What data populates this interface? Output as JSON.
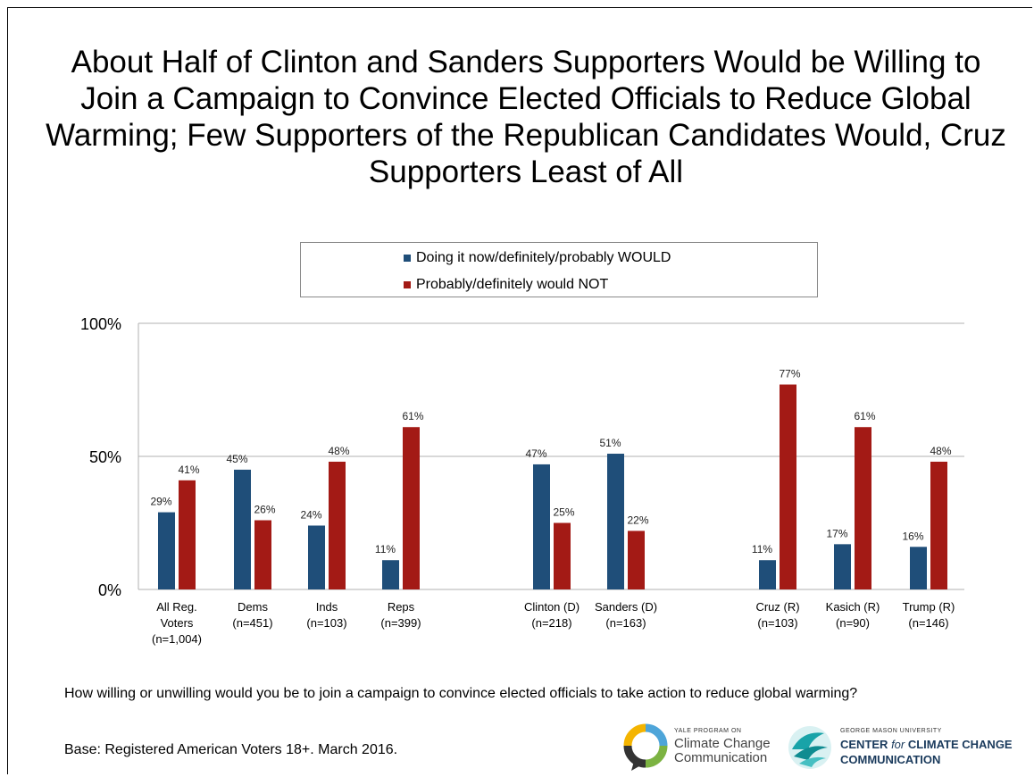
{
  "title": "About Half of Clinton and Sanders Supporters Would be Willing to Join a Campaign to Convince Elected Officials to Reduce Global Warming; Few Supporters of the Republican Candidates Would, Cruz Supporters Least of All",
  "question": "How willing or unwilling would you be to join a campaign to convince elected officials to take action to reduce global warming?",
  "base": "Base: Registered American Voters 18+. March 2016.",
  "logos": {
    "yale_small": "YALE PROGRAM ON",
    "yale_line1": "Climate Change",
    "yale_line2": "Communication",
    "gmu_small": "GEORGE MASON UNIVERSITY",
    "gmu_line1_a": "CENTER ",
    "gmu_line1_b": "for",
    "gmu_line1_c": " CLIMATE CHANGE",
    "gmu_line2": "COMMUNICATION"
  },
  "colors": {
    "would": "#1f4e79",
    "would_not": "#a31a15",
    "gridline": "#b0b0b0"
  },
  "chart_data": {
    "type": "bar",
    "title": "About Half of Clinton and Sanders Supporters Would be Willing to Join a Campaign to Convince Elected Officials to Reduce Global Warming; Few Supporters of the Republican Candidates Would, Cruz Supporters Least of All",
    "categories": [
      [
        "All Reg.",
        "Voters",
        "(n=1,004)"
      ],
      [
        "Dems",
        "(n=451)"
      ],
      [
        "Inds",
        "(n=103)"
      ],
      [
        "Reps",
        "(n=399)"
      ],
      [
        "Clinton (D)",
        "(n=218)"
      ],
      [
        "Sanders (D)",
        "(n=163)"
      ],
      [
        "Cruz (R)",
        "(n=103)"
      ],
      [
        "Kasich (R)",
        "(n=90)"
      ],
      [
        "Trump (R)",
        "(n=146)"
      ]
    ],
    "groups": [
      [
        0,
        1,
        2,
        3
      ],
      [
        4,
        5
      ],
      [
        6,
        7,
        8
      ]
    ],
    "series": [
      {
        "name": "Doing it now/definitely/probably WOULD",
        "values": [
          29,
          45,
          24,
          11,
          47,
          51,
          11,
          17,
          16
        ]
      },
      {
        "name": "Probably/definitely would NOT",
        "values": [
          41,
          26,
          48,
          61,
          25,
          22,
          77,
          61,
          48
        ]
      }
    ],
    "value_suffix": "%",
    "yticks": [
      "0%",
      "50%",
      "100%"
    ],
    "ytick_values": [
      0,
      50,
      100
    ],
    "ylim": [
      0,
      100
    ],
    "grid": true,
    "legend_position": "top-center"
  }
}
